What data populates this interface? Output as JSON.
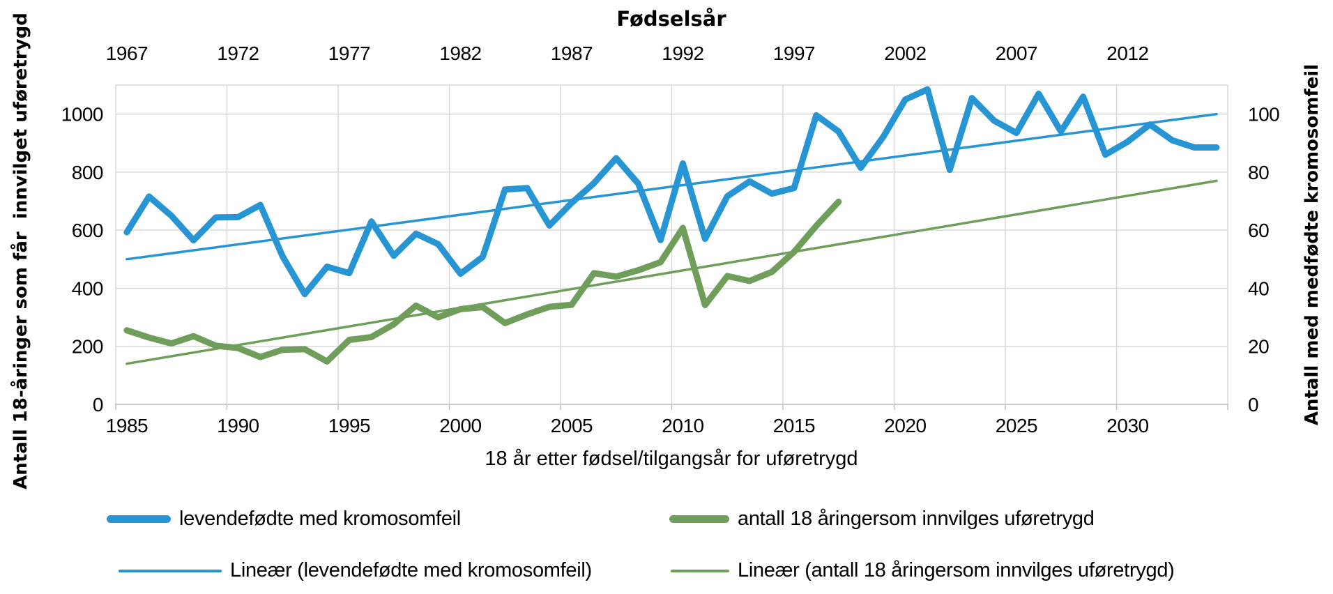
{
  "title_top": "Fødselsår",
  "axes": {
    "top": {
      "title": "Fødselsår",
      "ticks": [
        1967,
        1972,
        1977,
        1982,
        1987,
        1992,
        1997,
        2002,
        2007,
        2012
      ]
    },
    "bottom": {
      "title": "18 år etter fødsel/tilgangsår for uføretrygd",
      "ticks": [
        1985,
        1990,
        1995,
        2000,
        2005,
        2010,
        2015,
        2020,
        2025,
        2030
      ]
    },
    "left": {
      "title": "Antall 18-åringer som får  innvilget uføretrygd",
      "ticks": [
        0,
        200,
        400,
        600,
        800,
        1000
      ],
      "range": [
        0,
        1100
      ]
    },
    "right": {
      "title": "Antall med medfødte kromosomfeil",
      "ticks": [
        0,
        20,
        40,
        60,
        80,
        100
      ],
      "range": [
        0,
        110
      ]
    }
  },
  "colors": {
    "blue": "#2795D4",
    "green": "#6F9E5B",
    "grid": "#D9D9D9",
    "axis_line": "#BFBFBF",
    "text": "#000000"
  },
  "legend": {
    "row1_blue_label": "levendefødte med kromosomfeil",
    "row1_green_label": "antall 18 åringersom innvilges uføretrygd",
    "row2_blue_label": "Lineær (levendefødte med kromosomfeil)",
    "row2_green_label": "Lineær (antall 18 åringersom innvilges uføretrygd)"
  },
  "chart_data": {
    "type": "line",
    "title": "Fødselsår",
    "xlabel_bottom": "18 år etter fødsel/tilgangsår for uføretrygd",
    "ylabel_left": "Antall 18-åringer som får  innvilget uføretrygd",
    "ylabel_right": "Antall med medfødte kromosomfeil",
    "x_range_years": [
      1985,
      2034
    ],
    "grid": true,
    "legend_position": "bottom",
    "series": [
      {
        "name": "levendefødte med kromosomfeil",
        "axis": "right",
        "color": "#2795D4",
        "width": 9,
        "years": [
          1985,
          1986,
          1987,
          1988,
          1989,
          1990,
          1991,
          1992,
          1993,
          1994,
          1995,
          1996,
          1997,
          1998,
          1999,
          2000,
          2001,
          2002,
          2003,
          2004,
          2005,
          2006,
          2007,
          2008,
          2009,
          2010,
          2011,
          2012,
          2013,
          2014,
          2015,
          2016,
          2017,
          2018,
          2019,
          2020,
          2021,
          2022,
          2023,
          2024,
          2025,
          2026,
          2027,
          2028,
          2029,
          2030,
          2031,
          2032,
          2033,
          2034
        ],
        "values": [
          59.3,
          71.6,
          65,
          56.5,
          64.4,
          64.5,
          68.7,
          51,
          38,
          47.4,
          45.2,
          63,
          51.2,
          58.8,
          55.2,
          45,
          50.8,
          74,
          74.5,
          61.6,
          69.4,
          76.2,
          84.8,
          76,
          56.6,
          83,
          57,
          71.7,
          76.8,
          72.6,
          74.5,
          99.6,
          94,
          81.5,
          92,
          105,
          108.5,
          80.8,
          105.5,
          97.7,
          93.5,
          107,
          94,
          106,
          86,
          90.5,
          96.4,
          91,
          88.5,
          88.5
        ]
      },
      {
        "name": "antall 18 åringersom innvilges uføretrygd",
        "axis": "left",
        "color": "#6F9E5B",
        "width": 9,
        "years": [
          1985,
          1986,
          1987,
          1988,
          1989,
          1990,
          1991,
          1992,
          1993,
          1994,
          1995,
          1996,
          1997,
          1998,
          1999,
          2000,
          2001,
          2002,
          2003,
          2004,
          2005,
          2006,
          2007,
          2008,
          2009,
          2010,
          2011,
          2012,
          2013,
          2014,
          2015,
          2016,
          2017
        ],
        "values": [
          255,
          230,
          210,
          235,
          202,
          194,
          163,
          188,
          190,
          148,
          222,
          232,
          276,
          340,
          300,
          328,
          335,
          280,
          310,
          336,
          343,
          452,
          440,
          462,
          490,
          608,
          342,
          442,
          425,
          456,
          525,
          615,
          698
        ]
      },
      {
        "name": "Lineær (levendefødte med kromosomfeil)",
        "axis": "right",
        "color": "#2795D4",
        "width": 3.5,
        "trend": true,
        "years": [
          1985,
          2034
        ],
        "values": [
          50,
          100
        ]
      },
      {
        "name": "Lineær (antall 18 åringersom innvilges uføretrygd)",
        "axis": "left",
        "color": "#6F9E5B",
        "width": 3.5,
        "trend": true,
        "years": [
          1985,
          2034
        ],
        "values": [
          140,
          770
        ]
      }
    ]
  }
}
